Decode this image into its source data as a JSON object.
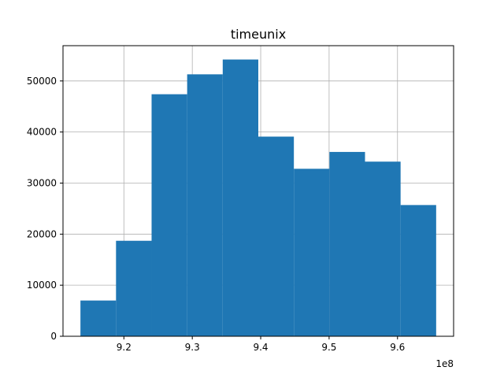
{
  "chart_data": {
    "type": "bar",
    "title": "timeunix",
    "xlabel": "",
    "ylabel": "",
    "x_offset_label": "1e8",
    "x_multiplier": 100000000,
    "bins": [
      {
        "start": 9.1365,
        "end": 9.1885,
        "count": 7000
      },
      {
        "start": 9.1885,
        "end": 9.2405,
        "count": 18700
      },
      {
        "start": 9.2405,
        "end": 9.2925,
        "count": 47400
      },
      {
        "start": 9.2925,
        "end": 9.3445,
        "count": 51300
      },
      {
        "start": 9.3445,
        "end": 9.3965,
        "count": 54200
      },
      {
        "start": 9.3965,
        "end": 9.4485,
        "count": 39100
      },
      {
        "start": 9.4485,
        "end": 9.5005,
        "count": 32800
      },
      {
        "start": 9.5005,
        "end": 9.5525,
        "count": 36100
      },
      {
        "start": 9.5525,
        "end": 9.6045,
        "count": 34200
      },
      {
        "start": 9.6045,
        "end": 9.6565,
        "count": 25700
      }
    ],
    "xlim": [
      9.111,
      9.682
    ],
    "ylim": [
      0,
      56910
    ],
    "xticks": [
      {
        "value": 9.2,
        "label": "9.2"
      },
      {
        "value": 9.3,
        "label": "9.3"
      },
      {
        "value": 9.4,
        "label": "9.4"
      },
      {
        "value": 9.5,
        "label": "9.5"
      },
      {
        "value": 9.6,
        "label": "9.6"
      }
    ],
    "yticks": [
      {
        "value": 0,
        "label": "0"
      },
      {
        "value": 10000,
        "label": "10000"
      },
      {
        "value": 20000,
        "label": "20000"
      },
      {
        "value": 30000,
        "label": "30000"
      },
      {
        "value": 40000,
        "label": "40000"
      },
      {
        "value": 50000,
        "label": "50000"
      }
    ],
    "grid": true,
    "colors": {
      "bar": "#1f77b4",
      "grid": "#b0b0b0",
      "axis": "#000000"
    }
  }
}
